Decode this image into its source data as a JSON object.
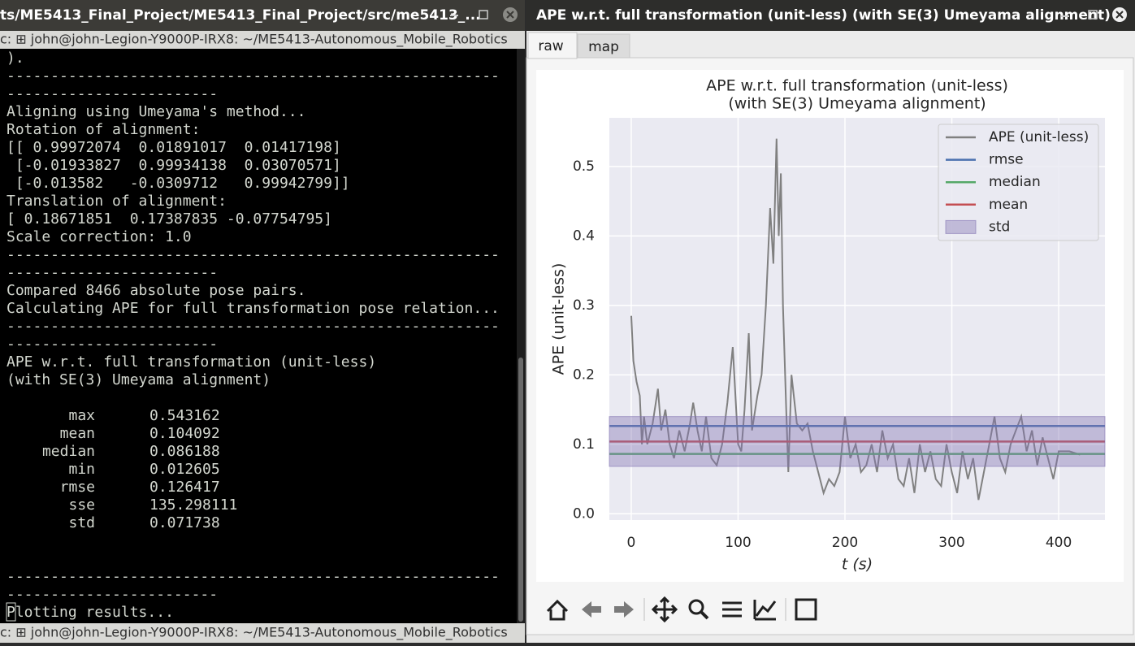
{
  "left_window": {
    "title": "ts/ME5413_Final_Project/ME5413_Final_Project/src/me5413_...",
    "terminal_tab": "c: ⊞ john@john-Legion-Y9000P-IRX8: ~/ME5413-Autonomous_Mobile_Robotics",
    "terminal_status": "c: ⊞ john@john-Legion-Y9000P-IRX8: ~/ME5413-Autonomous_Mobile_Robotics",
    "lines_top": [
      ").",
      "--------------------------------------------------------",
      "------------------------",
      "Aligning using Umeyama's method...",
      "Rotation of alignment:",
      "[[ 0.99972074  0.01891017  0.01417198]",
      " [-0.01933827  0.99934138  0.03070571]",
      " [-0.013582   -0.0309712   0.99942799]]",
      "Translation of alignment:",
      "[ 0.18671851  0.17387835 -0.07754795]",
      "Scale correction: 1.0",
      "--------------------------------------------------------",
      "------------------------",
      "Compared 8466 absolute pose pairs.",
      "Calculating APE for full transformation pose relation...",
      "--------------------------------------------------------",
      "------------------------",
      "APE w.r.t. full transformation (unit-less)",
      "(with SE(3) Umeyama alignment)"
    ],
    "stats": [
      {
        "name": "max",
        "value": 0.543162
      },
      {
        "name": "mean",
        "value": 0.104092
      },
      {
        "name": "median",
        "value": 0.086188
      },
      {
        "name": "min",
        "value": 0.012605
      },
      {
        "name": "rmse",
        "value": 0.126417
      },
      {
        "name": "sse",
        "value": 135.298111
      },
      {
        "name": "std",
        "value": 0.071738
      }
    ],
    "lines_bottom": [
      "--------------------------------------------------------",
      "------------------------",
      "Plotting results..."
    ]
  },
  "right_window": {
    "title": "APE w.r.t. full transformation (unit-less) (with SE(3) Umeyama alignment)",
    "tabs": [
      "raw",
      "map"
    ]
  },
  "chart_data": {
    "type": "line",
    "title": "APE w.r.t. full transformation (unit-less)",
    "subtitle": "(with SE(3) Umeyama alignment)",
    "xlabel": "t (s)",
    "ylabel": "APE (unit-less)",
    "xlim": [
      -20.5,
      443.3
    ],
    "ylim": [
      -0.009,
      0.57
    ],
    "xticks": [
      0,
      100,
      200,
      300,
      400
    ],
    "yticks": [
      {
        "value": 0,
        "label": "0.0"
      },
      0.1,
      0.2,
      0.3,
      0.4,
      0.5
    ],
    "grid": true,
    "legend": "upper right",
    "background": "#eaeaf2",
    "series": [
      {
        "name": "APE (unit-less)",
        "color": "#808080",
        "x": [
          0,
          2,
          5,
          8,
          10,
          12,
          15,
          20,
          25,
          28,
          32,
          36,
          40,
          45,
          50,
          55,
          58,
          62,
          66,
          70,
          75,
          80,
          85,
          90,
          95,
          100,
          103,
          106,
          110,
          113,
          118,
          122,
          126,
          130,
          133,
          136,
          138,
          140,
          142,
          145,
          147,
          150,
          155,
          160,
          165,
          170,
          175,
          180,
          185,
          190,
          195,
          200,
          205,
          210,
          215,
          220,
          225,
          230,
          235,
          240,
          245,
          250,
          255,
          260,
          265,
          270,
          275,
          280,
          285,
          290,
          295,
          300,
          305,
          310,
          315,
          320,
          325,
          330,
          335,
          340,
          345,
          350,
          355,
          360,
          365,
          370,
          375,
          380,
          385,
          390,
          395,
          400,
          405,
          410,
          420
        ],
        "values": [
          0.285,
          0.22,
          0.19,
          0.17,
          0.1,
          0.14,
          0.1,
          0.13,
          0.18,
          0.12,
          0.15,
          0.1,
          0.08,
          0.12,
          0.09,
          0.13,
          0.16,
          0.12,
          0.09,
          0.14,
          0.08,
          0.07,
          0.1,
          0.16,
          0.24,
          0.1,
          0.09,
          0.15,
          0.26,
          0.12,
          0.17,
          0.2,
          0.3,
          0.44,
          0.36,
          0.54,
          0.4,
          0.49,
          0.3,
          0.15,
          0.06,
          0.2,
          0.13,
          0.12,
          0.13,
          0.09,
          0.06,
          0.03,
          0.05,
          0.04,
          0.06,
          0.14,
          0.08,
          0.1,
          0.06,
          0.07,
          0.1,
          0.06,
          0.12,
          0.08,
          0.1,
          0.05,
          0.04,
          0.08,
          0.03,
          0.1,
          0.06,
          0.09,
          0.05,
          0.04,
          0.1,
          0.06,
          0.03,
          0.09,
          0.05,
          0.08,
          0.02,
          0.06,
          0.1,
          0.14,
          0.08,
          0.06,
          0.1,
          0.12,
          0.14,
          0.09,
          0.12,
          0.07,
          0.11,
          0.08,
          0.05,
          0.09,
          0.09,
          0.09,
          0.085
        ]
      },
      {
        "name": "rmse",
        "color": "#4c72b0",
        "value": 0.126417
      },
      {
        "name": "median",
        "color": "#55a868",
        "value": 0.086188
      },
      {
        "name": "mean",
        "color": "#c44e52",
        "value": 0.104092
      },
      {
        "name": "std",
        "color": "#8172b2",
        "value": 0.071738
      }
    ]
  }
}
